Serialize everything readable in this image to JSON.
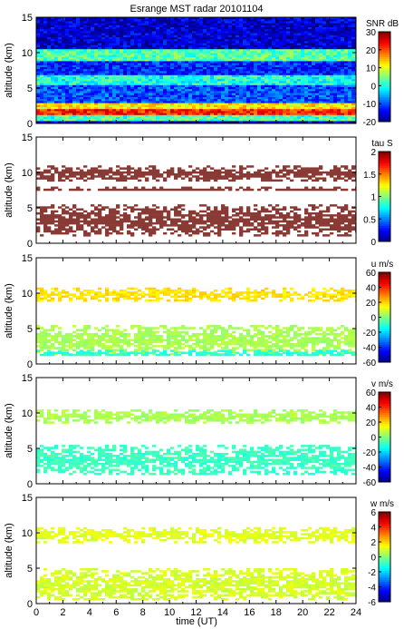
{
  "chart_data": {
    "type": "heatmap",
    "title": "Esrange MST radar 20101104",
    "xlabel": "time (UT)",
    "xlim": [
      0,
      24
    ],
    "xticks": [
      "0",
      "2",
      "4",
      "6",
      "8",
      "10",
      "12",
      "14",
      "16",
      "18",
      "20",
      "22",
      "24"
    ],
    "ylabel": "altitude (km)",
    "ylim": [
      0,
      15
    ],
    "yticks": [
      "0",
      "5",
      "10",
      "15"
    ],
    "colormap": "jet",
    "panels": [
      {
        "id": "snr",
        "colorbar_label": "SNR dB",
        "clim": [
          -20,
          30
        ],
        "cticks": [
          "-20",
          "-10",
          "0",
          "10",
          "20",
          "30"
        ],
        "features": [
          {
            "alt_range": [
              0.5,
              1.2
            ],
            "value": 2
          },
          {
            "alt_range": [
              1.2,
              2.2
            ],
            "value": 22
          },
          {
            "alt_range": [
              2.2,
              3.0
            ],
            "value": 12
          },
          {
            "alt_range": [
              3.0,
              5.5
            ],
            "value": -10
          },
          {
            "alt_range": [
              5.5,
              7.0
            ],
            "value": 0
          },
          {
            "alt_range": [
              7.0,
              9.0
            ],
            "value": -12
          },
          {
            "alt_range": [
              9.0,
              10.5
            ],
            "value": 3
          },
          {
            "alt_range": [
              10.5,
              15
            ],
            "value": -16
          }
        ]
      },
      {
        "id": "tau",
        "colorbar_label": "tau S",
        "clim": [
          0,
          2
        ],
        "cticks": [
          "0",
          "0.5",
          "1",
          "1.5",
          "2"
        ],
        "features": [
          {
            "alt_range": [
              9,
              11
            ],
            "value": 2
          },
          {
            "alt_range": [
              7.5,
              8.0
            ],
            "value": 2
          },
          {
            "alt_range": [
              1.2,
              5.5
            ],
            "value": 2
          }
        ]
      },
      {
        "id": "u",
        "colorbar_label": "u m/s",
        "clim": [
          -60,
          60
        ],
        "cticks": [
          "-60",
          "-40",
          "-20",
          "0",
          "20",
          "40",
          "60"
        ],
        "features": [
          {
            "alt_range": [
              9,
              10.8
            ],
            "value": 18
          },
          {
            "alt_range": [
              1.5,
              5.5
            ],
            "value": 5
          },
          {
            "alt_range": [
              1.2,
              2.0
            ],
            "value": -10
          }
        ]
      },
      {
        "id": "v",
        "colorbar_label": "v m/s",
        "clim": [
          -60,
          60
        ],
        "cticks": [
          "-60",
          "-40",
          "-20",
          "0",
          "20",
          "40",
          "60"
        ],
        "features": [
          {
            "alt_range": [
              8.8,
              10.5
            ],
            "value": 5
          },
          {
            "alt_range": [
              1.5,
              5.5
            ],
            "value": -8
          }
        ]
      },
      {
        "id": "w",
        "colorbar_label": "w m/s",
        "clim": [
          -6,
          6
        ],
        "cticks": [
          "-6",
          "-4",
          "-2",
          "0",
          "2",
          "4",
          "6"
        ],
        "features": [
          {
            "alt_range": [
              8.8,
              10.8
            ],
            "value": 1.2
          },
          {
            "alt_range": [
              0.5,
              5.0
            ],
            "value": 1.0
          }
        ]
      }
    ]
  }
}
